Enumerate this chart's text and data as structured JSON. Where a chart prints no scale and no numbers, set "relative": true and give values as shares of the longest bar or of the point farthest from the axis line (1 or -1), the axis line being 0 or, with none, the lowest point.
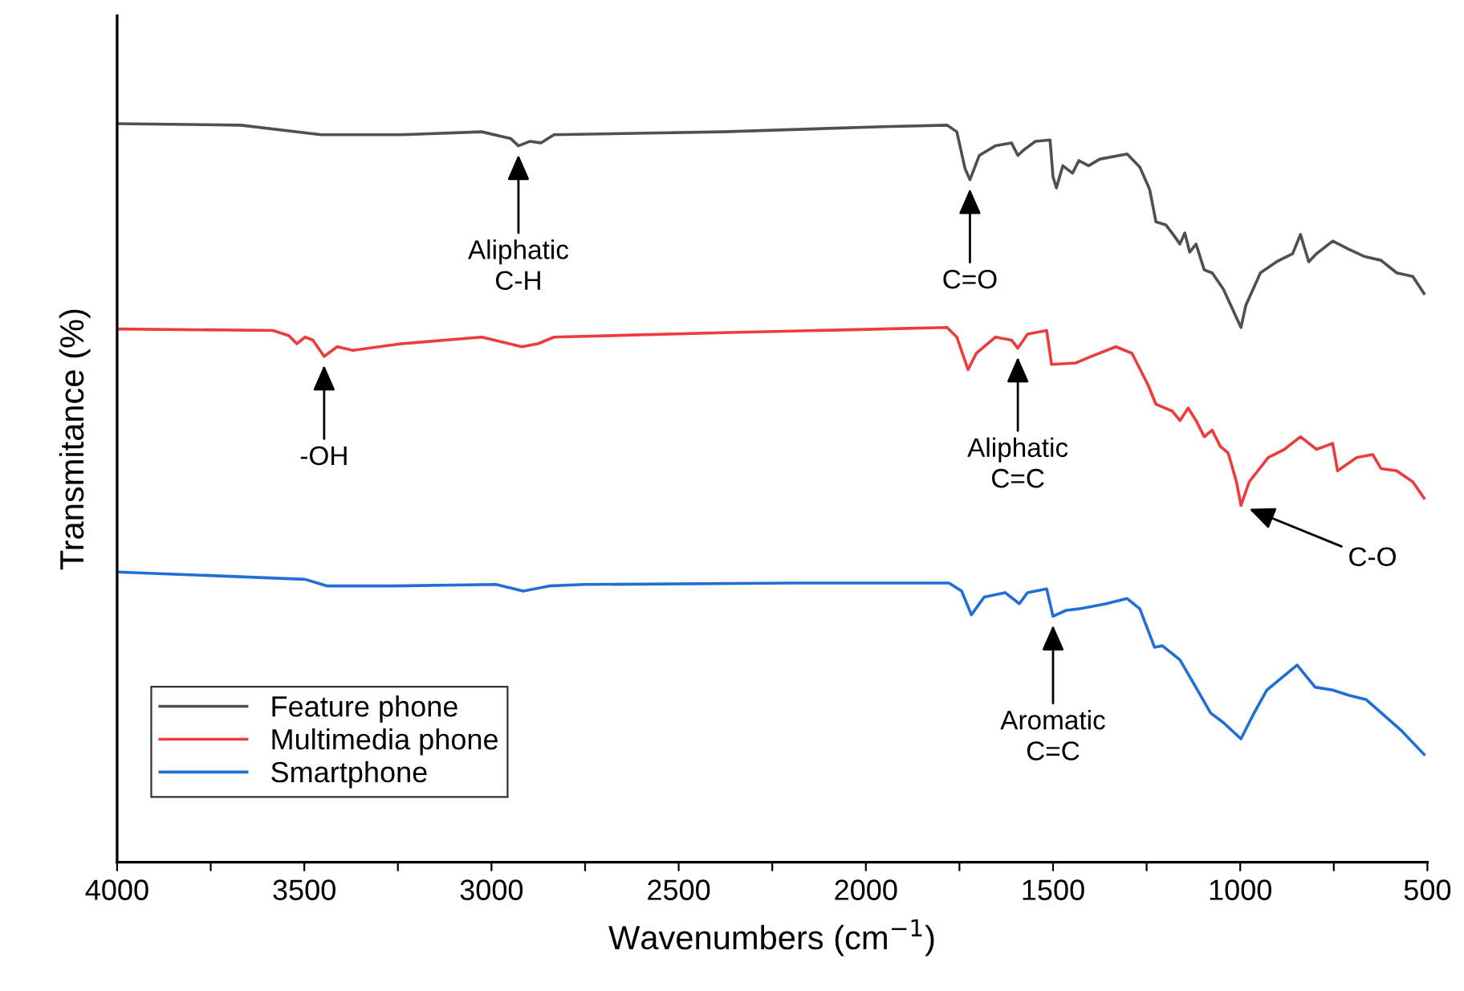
{
  "chart_data": {
    "type": "line",
    "relative": true,
    "xlabel": "Wavenumbers (cm$^{−1}$)",
    "ylabel": "Transmitance (%)",
    "xlim": [
      4000,
      500
    ],
    "xticks": [
      4000,
      {
        "value": 3750,
        "label": null
      },
      3500,
      {
        "value": 3250,
        "label": null
      },
      3000,
      {
        "value": 2750,
        "label": null
      },
      2500,
      {
        "value": 2250,
        "label": null
      },
      2000,
      {
        "value": 1750,
        "label": null
      },
      1500,
      {
        "value": 1250,
        "label": null
      },
      1000,
      {
        "value": 750,
        "label": null
      },
      500
    ],
    "tick_labels": "x",
    "grid": false,
    "legend": "bottom left",
    "marker": "none",
    "line_style": "solid",
    "series": [
      {
        "name": "Feature phone",
        "color": "#505050",
        "x": [
          4000,
          3670,
          3455,
          3241,
          3026,
          2949,
          2928,
          2898,
          2868,
          2833,
          2383,
          1954,
          1783,
          1757,
          1735,
          1722,
          1697,
          1654,
          1611,
          1594,
          1577,
          1547,
          1508,
          1500,
          1491,
          1474,
          1448,
          1431,
          1405,
          1375,
          1302,
          1268,
          1242,
          1225,
          1199,
          1182,
          1161,
          1148,
          1135,
          1118,
          1096,
          1075,
          1045,
          998,
          985,
          946,
          903,
          860,
          839,
          817,
          796,
          753,
          710,
          667,
          624,
          582,
          539,
          509
        ],
        "values": [
          1.0,
          0.998,
          0.985,
          0.985,
          0.989,
          0.98,
          0.97,
          0.976,
          0.974,
          0.985,
          0.989,
          0.996,
          0.998,
          0.989,
          0.939,
          0.924,
          0.957,
          0.97,
          0.974,
          0.957,
          0.965,
          0.976,
          0.978,
          0.928,
          0.913,
          0.943,
          0.933,
          0.95,
          0.943,
          0.952,
          0.959,
          0.941,
          0.911,
          0.867,
          0.863,
          0.852,
          0.837,
          0.852,
          0.826,
          0.837,
          0.802,
          0.798,
          0.776,
          0.724,
          0.754,
          0.798,
          0.813,
          0.824,
          0.85,
          0.813,
          0.824,
          0.841,
          0.83,
          0.82,
          0.815,
          0.798,
          0.793,
          0.77
        ]
      },
      {
        "name": "Multimedia phone",
        "color": "#ee3b3b",
        "x": [
          4000,
          3584,
          3541,
          3520,
          3498,
          3477,
          3447,
          3412,
          3370,
          3241,
          3026,
          2919,
          2876,
          2833,
          2383,
          1954,
          1783,
          1757,
          1727,
          1705,
          1654,
          1611,
          1594,
          1568,
          1517,
          1504,
          1439,
          1397,
          1332,
          1289,
          1246,
          1225,
          1182,
          1161,
          1139,
          1118,
          1096,
          1075,
          1053,
          1032,
          1010,
          998,
          976,
          925,
          882,
          839,
          796,
          753,
          740,
          689,
          646,
          624,
          582,
          539,
          509
        ],
        "values": [
          0.722,
          0.72,
          0.713,
          0.702,
          0.711,
          0.707,
          0.685,
          0.698,
          0.693,
          0.702,
          0.711,
          0.698,
          0.702,
          0.711,
          0.717,
          0.722,
          0.724,
          0.711,
          0.667,
          0.689,
          0.711,
          0.707,
          0.696,
          0.715,
          0.72,
          0.674,
          0.676,
          0.685,
          0.698,
          0.689,
          0.646,
          0.62,
          0.611,
          0.598,
          0.615,
          0.598,
          0.576,
          0.585,
          0.563,
          0.554,
          0.515,
          0.483,
          0.515,
          0.548,
          0.559,
          0.576,
          0.559,
          0.567,
          0.53,
          0.548,
          0.552,
          0.533,
          0.53,
          0.515,
          0.493
        ]
      },
      {
        "name": "Smartphone",
        "color": "#1f6fd6",
        "x": [
          4000,
          3498,
          3438,
          3267,
          2988,
          2915,
          2846,
          2752,
          2194,
          1778,
          1744,
          1718,
          1684,
          1628,
          1590,
          1568,
          1517,
          1500,
          1465,
          1431,
          1358,
          1302,
          1268,
          1229,
          1208,
          1161,
          1114,
          1079,
          1045,
          998,
          963,
          929,
          848,
          800,
          753,
          710,
          663,
          569,
          509
        ],
        "values": [
          0.393,
          0.383,
          0.374,
          0.374,
          0.376,
          0.367,
          0.374,
          0.376,
          0.378,
          0.378,
          0.367,
          0.335,
          0.359,
          0.365,
          0.35,
          0.365,
          0.37,
          0.333,
          0.341,
          0.343,
          0.35,
          0.357,
          0.343,
          0.291,
          0.293,
          0.274,
          0.233,
          0.202,
          0.189,
          0.167,
          0.202,
          0.233,
          0.267,
          0.237,
          0.233,
          0.226,
          0.22,
          0.178,
          0.146
        ]
      }
    ],
    "annotations": [
      {
        "text": "Aliphatic\nC-H",
        "x": 2928,
        "y": 0.97
      },
      {
        "text": "C=O",
        "x": 1722,
        "y": 0.924
      },
      {
        "text": "-OH",
        "x": 3447,
        "y": 0.685
      },
      {
        "text": "Aliphatic\nC=C",
        "x": 1594,
        "y": 0.696
      },
      {
        "text": "C-O",
        "x": 998,
        "y": 0.483
      },
      {
        "text": "Aromatic\nC=C",
        "x": 1500,
        "y": 0.333
      }
    ]
  }
}
